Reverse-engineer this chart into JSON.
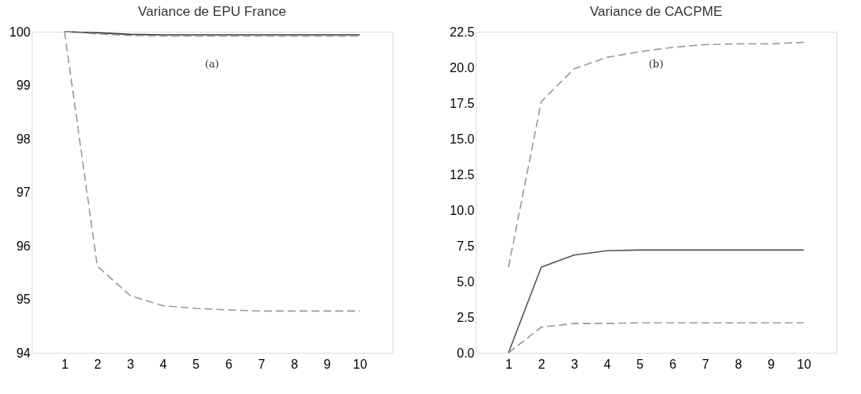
{
  "chart_data": [
    {
      "type": "line",
      "title": "Variance de EPU France",
      "x": [
        1,
        2,
        3,
        4,
        5,
        6,
        7,
        8,
        9,
        10
      ],
      "xlim": [
        0,
        11
      ],
      "xticks": [
        1,
        2,
        3,
        4,
        5,
        6,
        7,
        8,
        9,
        10
      ],
      "ylim": [
        94,
        100
      ],
      "yticks": [
        94,
        95,
        96,
        97,
        98,
        99,
        100
      ],
      "grid": false,
      "marker": "none",
      "annotations": [
        "(a)"
      ],
      "series": [
        {
          "color": "#333333",
          "line_style": "solid",
          "values": [
            100,
            99.98,
            99.95,
            99.94,
            99.94,
            99.94,
            99.94,
            99.94,
            99.94,
            99.94
          ]
        },
        {
          "color": "#999999",
          "line_style": "dashed",
          "values": [
            100,
            99.96,
            99.93,
            99.92,
            99.92,
            99.92,
            99.92,
            99.92,
            99.92,
            99.92
          ]
        },
        {
          "color": "#999999",
          "line_style": "dashed",
          "values": [
            100,
            95.62,
            95.07,
            94.88,
            94.83,
            94.8,
            94.78,
            94.78,
            94.78,
            94.78
          ]
        }
      ]
    },
    {
      "type": "line",
      "title": "Variance de CACPME",
      "x": [
        1,
        2,
        3,
        4,
        5,
        6,
        7,
        8,
        9,
        10
      ],
      "xlim": [
        0,
        11
      ],
      "xticks": [
        1,
        2,
        3,
        4,
        5,
        6,
        7,
        8,
        9,
        10
      ],
      "ylim": [
        0,
        22.5
      ],
      "yticks": [
        {
          "value": 0,
          "label": "0.0"
        },
        {
          "value": 2.5,
          "label": "2.5"
        },
        {
          "value": 5,
          "label": "5.0"
        },
        {
          "value": 7.5,
          "label": "7.5"
        },
        {
          "value": 10,
          "label": "10.0"
        },
        {
          "value": 12.5,
          "label": "12.5"
        },
        {
          "value": 15,
          "label": "15.0"
        },
        {
          "value": 17.5,
          "label": "17.5"
        },
        {
          "value": 20,
          "label": "20.0"
        },
        {
          "value": 22.5,
          "label": "22.5"
        }
      ],
      "grid": false,
      "marker": "none",
      "annotations": [
        "(b)"
      ],
      "series": [
        {
          "color": "#999999",
          "line_style": "dashed",
          "values": [
            6.0,
            17.6,
            19.9,
            20.7,
            21.1,
            21.4,
            21.6,
            21.65,
            21.65,
            21.75
          ]
        },
        {
          "color": "#555555",
          "line_style": "solid",
          "values": [
            0,
            6.0,
            6.85,
            7.15,
            7.2,
            7.2,
            7.2,
            7.2,
            7.2,
            7.2
          ]
        },
        {
          "color": "#999999",
          "line_style": "dashed",
          "values": [
            0,
            1.8,
            2.05,
            2.05,
            2.1,
            2.1,
            2.1,
            2.1,
            2.1,
            2.1
          ]
        }
      ]
    }
  ]
}
